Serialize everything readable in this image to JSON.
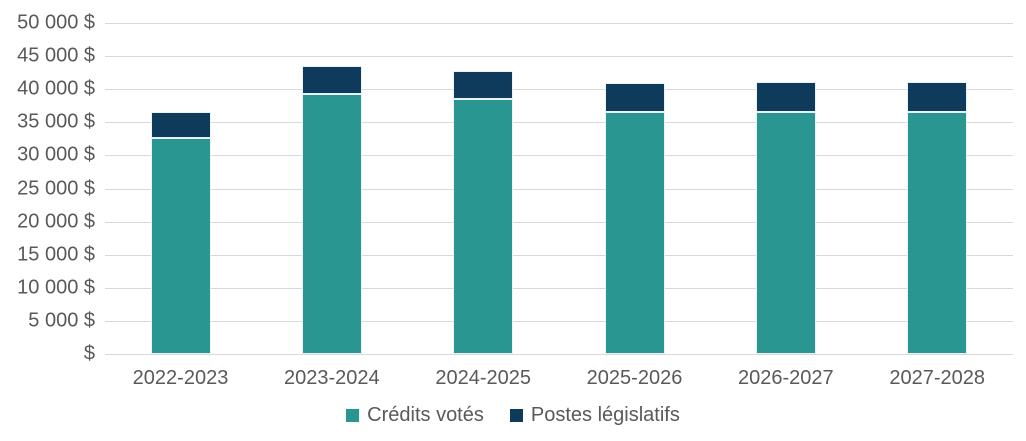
{
  "chart_data": {
    "type": "bar",
    "stacked": true,
    "title": "",
    "xlabel": "",
    "ylabel": "",
    "categories": [
      "2022-2023",
      "2023-2024",
      "2024-2025",
      "2025-2026",
      "2026-2027",
      "2027-2028"
    ],
    "series": [
      {
        "name": "Crédits votés",
        "color": "#2a9692",
        "values": [
          32700,
          39300,
          38500,
          36500,
          36600,
          36500
        ]
      },
      {
        "name": "Postes législatifs",
        "color": "#0e3a5c",
        "values": [
          3900,
          4200,
          4300,
          4400,
          4500,
          4600
        ]
      }
    ],
    "totals": [
      36600,
      43500,
      42800,
      40900,
      41100,
      41100
    ],
    "ylim": [
      0,
      50000
    ],
    "ytick_step": 5000,
    "ytick_labels": [
      "$",
      "5 000 $",
      "10 000 $",
      "15 000 $",
      "20 000 $",
      "25 000 $",
      "30 000 $",
      "35 000 $",
      "40 000 $",
      "45 000 $",
      "50 000 $"
    ],
    "grid": true,
    "legend_position": "bottom",
    "colors": {
      "gridline": "#d9d9d9",
      "axis_text": "#595959",
      "bar_border": "#e9f2f8",
      "background": "#ffffff"
    }
  }
}
